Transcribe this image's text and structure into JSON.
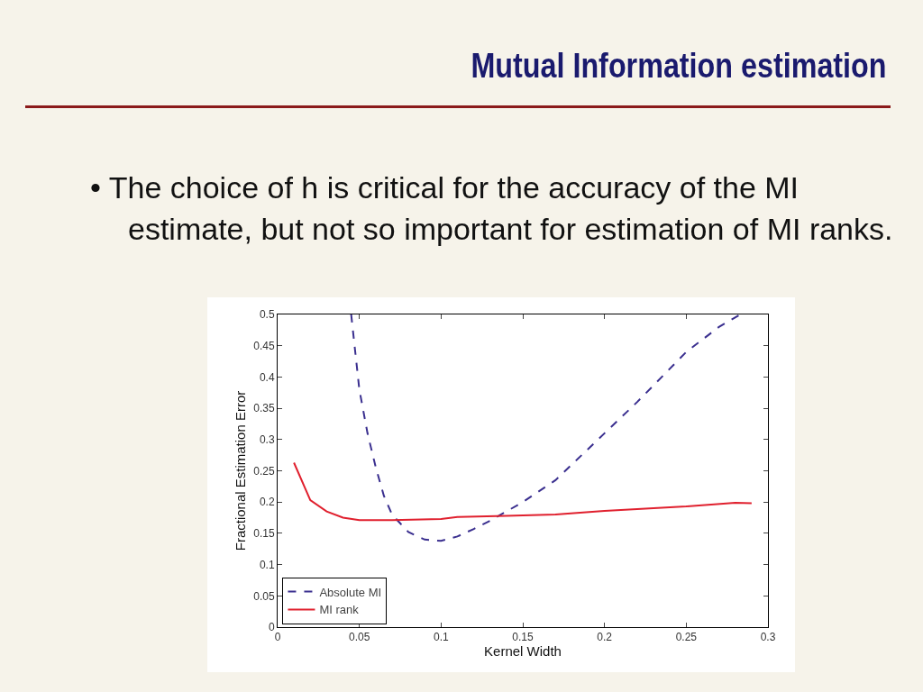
{
  "chart_data": {
    "type": "line",
    "title": "Mutual Information estimation",
    "subtitle": "• The choice of h is critical for the accuracy of the MI estimate, but not so important for estimation of MI ranks.",
    "xlabel": "Kernel Width",
    "ylabel": "Fractional Estimation Error",
    "xlim": [
      0,
      0.3
    ],
    "xticks": [
      0,
      0.05,
      0.1,
      0.15,
      0.2,
      0.25,
      0.3
    ],
    "ylim": [
      0,
      0.5
    ],
    "yticks": [
      0,
      0.05,
      0.1,
      0.15,
      0.2,
      0.25,
      0.3,
      0.35,
      0.4,
      0.45,
      0.5
    ],
    "grid": false,
    "legend": "bottom left",
    "marker": "none",
    "series": [
      {
        "name": "Absolute MI",
        "color": "#3a2f8f",
        "line_style": "dashed",
        "x": [
          0.045,
          0.05,
          0.055,
          0.06,
          0.065,
          0.07,
          0.075,
          0.08,
          0.09,
          0.1,
          0.11,
          0.12,
          0.13,
          0.14,
          0.15,
          0.17,
          0.2,
          0.22,
          0.25,
          0.27,
          0.283
        ],
        "values": [
          0.5,
          0.38,
          0.31,
          0.256,
          0.21,
          0.18,
          0.166,
          0.152,
          0.14,
          0.138,
          0.145,
          0.157,
          0.17,
          0.185,
          0.2,
          0.235,
          0.31,
          0.36,
          0.44,
          0.48,
          0.5
        ]
      },
      {
        "name": "MI rank",
        "color": "#e0202e",
        "line_style": "solid",
        "x": [
          0.01,
          0.02,
          0.03,
          0.04,
          0.05,
          0.07,
          0.1,
          0.11,
          0.14,
          0.17,
          0.2,
          0.25,
          0.28,
          0.29
        ],
        "values": [
          0.263,
          0.203,
          0.185,
          0.175,
          0.171,
          0.171,
          0.173,
          0.176,
          0.178,
          0.18,
          0.186,
          0.193,
          0.199,
          0.198
        ]
      }
    ]
  }
}
